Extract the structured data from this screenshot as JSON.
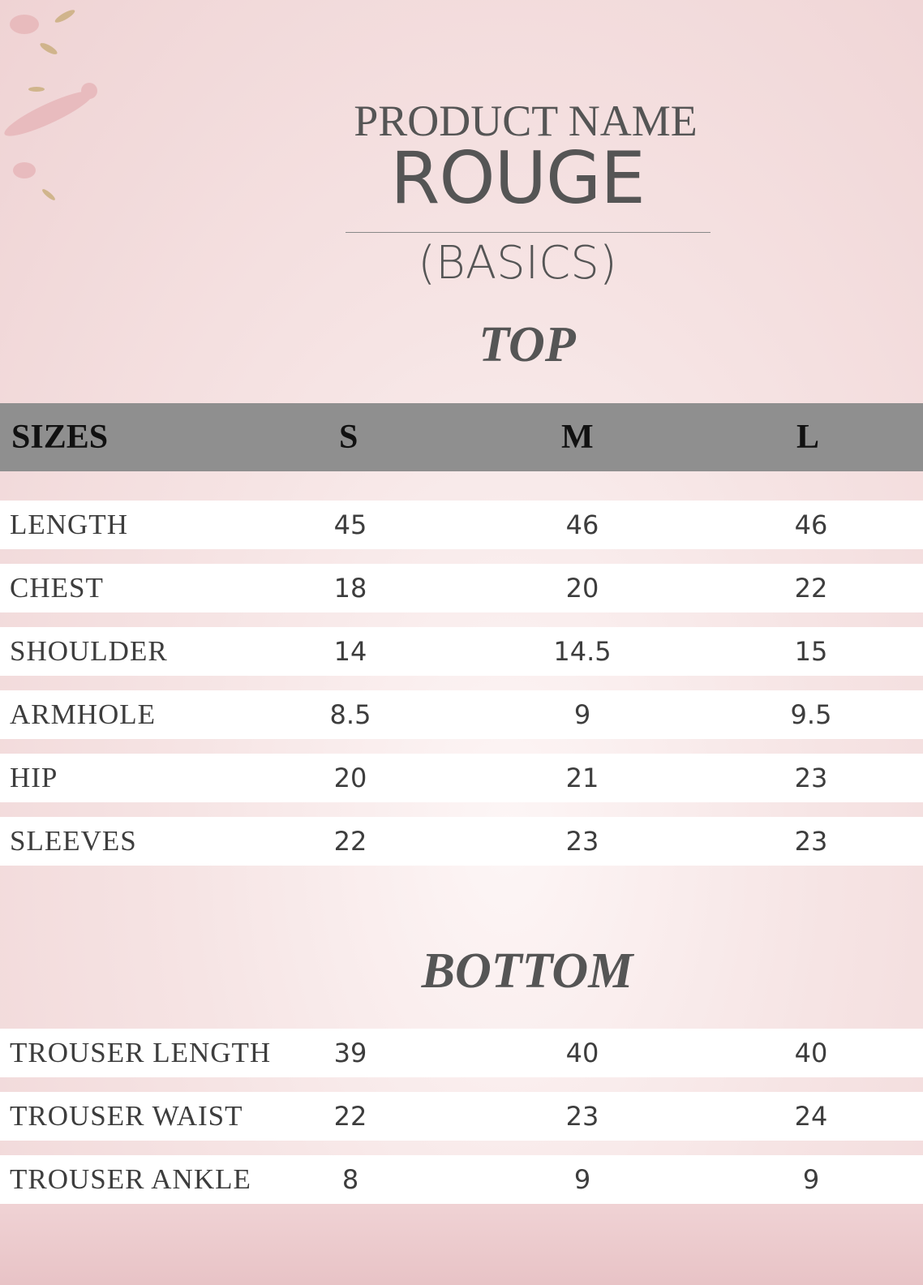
{
  "header": {
    "product_label": "PRODUCT NAME",
    "product_name": "ROUGE",
    "collection": "(BASICS)"
  },
  "top": {
    "title": "TOP",
    "columns": [
      "SIZES",
      "S",
      "M",
      "L"
    ],
    "rows": [
      {
        "label": "LENGTH",
        "values": [
          "45",
          "46",
          "46"
        ]
      },
      {
        "label": "CHEST",
        "values": [
          "18",
          "20",
          "22"
        ]
      },
      {
        "label": "SHOULDER",
        "values": [
          "14",
          "14.5",
          "15"
        ]
      },
      {
        "label": "ARMHOLE",
        "values": [
          "8.5",
          "9",
          "9.5"
        ]
      },
      {
        "label": "HIP",
        "values": [
          "20",
          "21",
          "23"
        ]
      },
      {
        "label": "SLEEVES",
        "values": [
          "22",
          "23",
          "23"
        ]
      }
    ]
  },
  "bottom": {
    "title": "BOTTOM",
    "rows": [
      {
        "label": "TROUSER LENGTH",
        "values": [
          "39",
          "40",
          "40"
        ]
      },
      {
        "label": "TROUSER WAIST",
        "values": [
          "22",
          "23",
          "24"
        ]
      },
      {
        "label": "TROUSER ANKLE",
        "values": [
          "8",
          "9",
          "9"
        ]
      }
    ]
  },
  "colors": {
    "header_band": "#8f8f8f",
    "background": "#f3dcdc",
    "text": "#454545"
  }
}
